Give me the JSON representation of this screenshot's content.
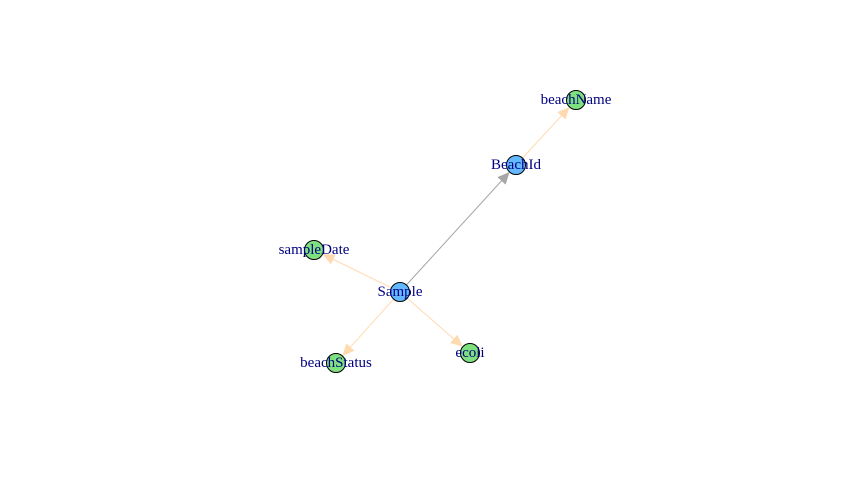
{
  "diagram": {
    "colors": {
      "entity_fill": "#63B8FF",
      "attribute_fill": "#7FE07F",
      "node_stroke": "#000000",
      "label": "#000080",
      "relation_edge": "#A6A6A6",
      "attribute_edge": "#FFDAB0"
    },
    "nodes": [
      {
        "id": "sample",
        "label": "Sample",
        "kind": "entity"
      },
      {
        "id": "beachid",
        "label": "BeachId",
        "kind": "entity"
      },
      {
        "id": "beachname",
        "label": "beachName",
        "kind": "attribute"
      },
      {
        "id": "sampledate",
        "label": "sampleDate",
        "kind": "attribute"
      },
      {
        "id": "beachstatus",
        "label": "beachStatus",
        "kind": "attribute"
      },
      {
        "id": "ecoli",
        "label": "ecoli",
        "kind": "attribute"
      }
    ],
    "edges": [
      {
        "from": "sample",
        "to": "beachid",
        "kind": "relation"
      },
      {
        "from": "beachid",
        "to": "beachname",
        "kind": "attribute"
      },
      {
        "from": "sample",
        "to": "sampledate",
        "kind": "attribute"
      },
      {
        "from": "sample",
        "to": "beachstatus",
        "kind": "attribute"
      },
      {
        "from": "sample",
        "to": "ecoli",
        "kind": "attribute"
      }
    ]
  }
}
